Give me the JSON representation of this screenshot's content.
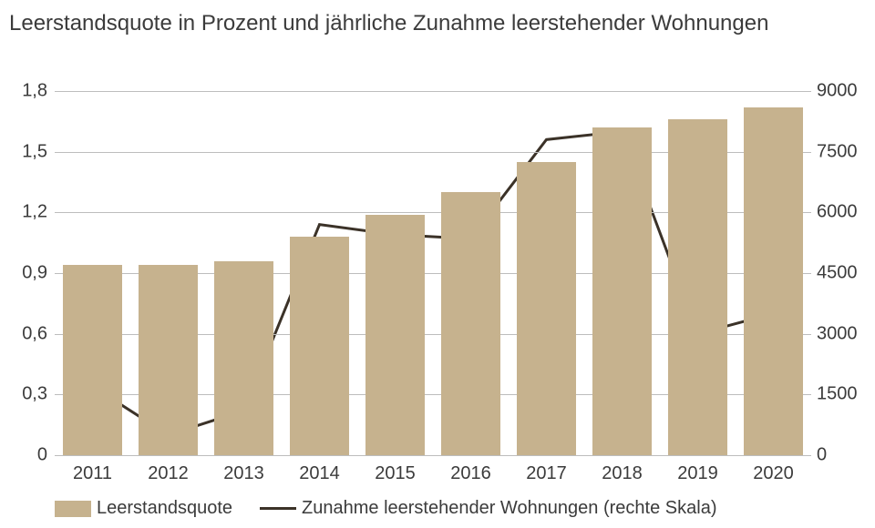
{
  "chart": {
    "type": "combo-bar-line",
    "title": "Leerstandsquote in Prozent und jährliche Zunahme leerstehender Wohnungen",
    "title_fontsize": 24,
    "title_color": "#3b3b3b",
    "background_color": "#ffffff",
    "categories": [
      "2011",
      "2012",
      "2013",
      "2014",
      "2015",
      "2016",
      "2017",
      "2018",
      "2019",
      "2020"
    ],
    "bars": {
      "label": "Leerstandsquote",
      "values": [
        0.94,
        0.94,
        0.96,
        1.08,
        1.19,
        1.3,
        1.45,
        1.62,
        1.66,
        1.72
      ],
      "color": "#c6b28e",
      "bar_width_ratio": 0.78
    },
    "line": {
      "label": "Zunahme leerstehender Wohnungen (rechte Skala)",
      "values": [
        1700,
        500,
        1100,
        5700,
        5450,
        5350,
        7800,
        8000,
        3000,
        3500
      ],
      "color": "#3b3228",
      "width": 3
    },
    "y_left": {
      "min": 0,
      "max": 1.8,
      "step": 0.3,
      "ticks": [
        "0",
        "0,3",
        "0,6",
        "0,9",
        "1,2",
        "1,5",
        "1,8"
      ],
      "label_fontsize": 20,
      "label_color": "#3b3b3b"
    },
    "y_right": {
      "min": 0,
      "max": 9000,
      "step": 1500,
      "ticks": [
        "0",
        "1500",
        "3000",
        "4500",
        "6000",
        "7500",
        "9000"
      ],
      "label_fontsize": 20,
      "label_color": "#3b3b3b"
    },
    "grid_color": "#bdbdbd",
    "x_label_fontsize": 20
  }
}
